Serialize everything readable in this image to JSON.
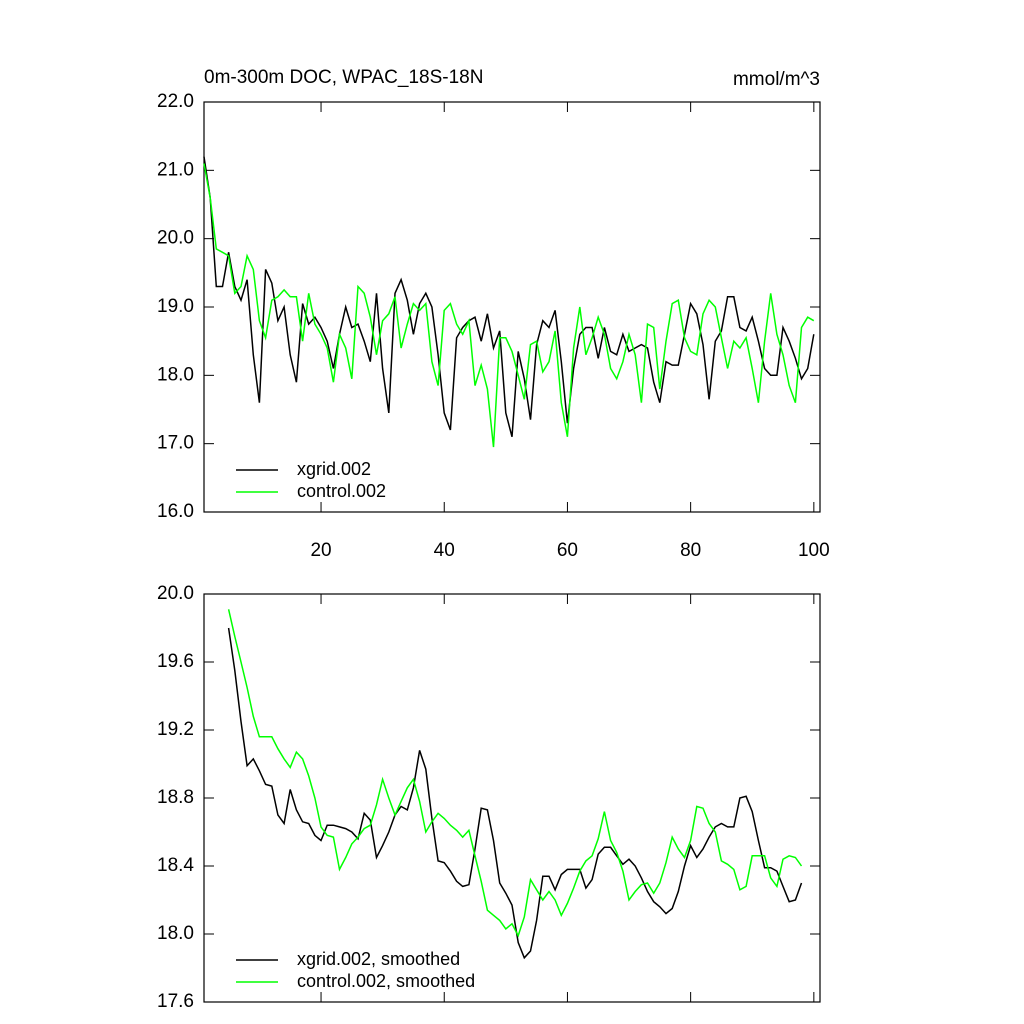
{
  "chart_data": [
    {
      "type": "line",
      "title": "0m-300m DOC, WPAC_18S-18N",
      "units_label": "mmol/m^3",
      "x": [
        1,
        2,
        3,
        4,
        5,
        6,
        7,
        8,
        9,
        10,
        11,
        12,
        13,
        14,
        15,
        16,
        17,
        18,
        19,
        20,
        21,
        22,
        23,
        24,
        25,
        26,
        27,
        28,
        29,
        30,
        31,
        32,
        33,
        34,
        35,
        36,
        37,
        38,
        39,
        40,
        41,
        42,
        43,
        44,
        45,
        46,
        47,
        48,
        49,
        50,
        51,
        52,
        53,
        54,
        55,
        56,
        57,
        58,
        59,
        60,
        61,
        62,
        63,
        64,
        65,
        66,
        67,
        68,
        69,
        70,
        71,
        72,
        73,
        74,
        75,
        76,
        77,
        78,
        79,
        80,
        81,
        82,
        83,
        84,
        85,
        86,
        87,
        88,
        89,
        90,
        91,
        92,
        93,
        94,
        95,
        96,
        97,
        98,
        99,
        100
      ],
      "series": [
        {
          "name": "xgrid.002",
          "color": "#000000",
          "values": [
            21.2,
            20.6,
            19.3,
            19.3,
            19.8,
            19.3,
            19.1,
            19.4,
            18.3,
            17.6,
            19.55,
            19.35,
            18.8,
            19.0,
            18.3,
            17.9,
            19.05,
            18.75,
            18.85,
            18.7,
            18.5,
            18.1,
            18.6,
            19.0,
            18.7,
            18.75,
            18.5,
            18.2,
            19.2,
            18.1,
            17.45,
            19.2,
            19.4,
            19.1,
            18.6,
            19.05,
            19.2,
            19.0,
            18.3,
            17.45,
            17.2,
            18.55,
            18.7,
            18.8,
            18.85,
            18.5,
            18.9,
            18.4,
            18.65,
            17.45,
            17.1,
            18.35,
            17.95,
            17.35,
            18.45,
            18.8,
            18.7,
            18.95,
            18.2,
            17.3,
            18.1,
            18.6,
            18.7,
            18.7,
            18.25,
            18.7,
            18.35,
            18.3,
            18.6,
            18.35,
            18.4,
            18.45,
            18.4,
            17.9,
            17.6,
            18.2,
            18.15,
            18.15,
            18.6,
            19.05,
            18.9,
            18.45,
            17.65,
            18.5,
            18.65,
            19.15,
            19.15,
            18.7,
            18.65,
            18.85,
            18.5,
            18.1,
            18.0,
            18.0,
            18.7,
            18.5,
            18.25,
            17.95,
            18.1,
            18.6
          ]
        },
        {
          "name": "control.002",
          "color": "#00ff00",
          "values": [
            21.1,
            20.6,
            19.85,
            19.8,
            19.75,
            19.2,
            19.3,
            19.75,
            19.55,
            18.8,
            18.55,
            19.1,
            19.15,
            19.25,
            19.15,
            19.15,
            18.5,
            19.2,
            18.75,
            18.6,
            18.4,
            17.9,
            18.6,
            18.4,
            17.95,
            19.3,
            19.2,
            18.85,
            18.3,
            18.8,
            18.9,
            19.15,
            18.4,
            18.75,
            19.05,
            18.95,
            19.05,
            18.2,
            17.85,
            18.95,
            19.05,
            18.75,
            18.6,
            18.8,
            17.85,
            18.15,
            17.8,
            16.95,
            18.55,
            18.55,
            18.35,
            18.0,
            17.65,
            18.45,
            18.5,
            18.05,
            18.2,
            18.65,
            17.6,
            17.1,
            18.4,
            19.0,
            18.3,
            18.55,
            18.85,
            18.6,
            18.1,
            17.95,
            18.2,
            18.6,
            18.3,
            17.6,
            18.75,
            18.7,
            17.8,
            18.5,
            19.05,
            19.1,
            18.55,
            18.35,
            18.3,
            18.9,
            19.1,
            19.0,
            18.55,
            18.1,
            18.5,
            18.4,
            18.55,
            18.1,
            17.6,
            18.5,
            19.2,
            18.6,
            18.3,
            17.85,
            17.6,
            18.7,
            18.85,
            18.8
          ]
        }
      ],
      "xlim": [
        1,
        101
      ],
      "xticks": [
        20,
        40,
        60,
        80,
        100
      ],
      "xtick_labels": true,
      "ylim": [
        16,
        22
      ],
      "yticks": [
        {
          "value": 16,
          "label": "16.0"
        },
        {
          "value": 17,
          "label": "17.0"
        },
        {
          "value": 18,
          "label": "18.0"
        },
        {
          "value": 19,
          "label": "19.0"
        },
        {
          "value": 20,
          "label": "20.0"
        },
        {
          "value": 21,
          "label": "21.0"
        },
        {
          "value": 22,
          "label": "22.0"
        }
      ],
      "legend": "lower left"
    },
    {
      "type": "line",
      "x": [
        5,
        6,
        7,
        8,
        9,
        10,
        11,
        12,
        13,
        14,
        15,
        16,
        17,
        18,
        19,
        20,
        21,
        22,
        23,
        24,
        25,
        26,
        27,
        28,
        29,
        30,
        31,
        32,
        33,
        34,
        35,
        36,
        37,
        38,
        39,
        40,
        41,
        42,
        43,
        44,
        45,
        46,
        47,
        48,
        49,
        50,
        51,
        52,
        53,
        54,
        55,
        56,
        57,
        58,
        59,
        60,
        61,
        62,
        63,
        64,
        65,
        66,
        67,
        68,
        69,
        70,
        71,
        72,
        73,
        74,
        75,
        76,
        77,
        78,
        79,
        80,
        81,
        82,
        83,
        84,
        85,
        86,
        87,
        88,
        89,
        90,
        91,
        92,
        93,
        94,
        95,
        96,
        97,
        98
      ],
      "series": [
        {
          "name": "xgrid.002, smoothed",
          "color": "#000000",
          "values": [
            19.8,
            19.55,
            19.25,
            18.99,
            19.03,
            18.96,
            18.88,
            18.87,
            18.7,
            18.65,
            18.85,
            18.73,
            18.66,
            18.65,
            18.58,
            18.55,
            18.64,
            18.64,
            18.63,
            18.62,
            18.6,
            18.56,
            18.71,
            18.67,
            18.45,
            18.52,
            18.6,
            18.7,
            18.75,
            18.73,
            18.86,
            19.08,
            18.97,
            18.68,
            18.43,
            18.42,
            18.37,
            18.31,
            18.28,
            18.29,
            18.5,
            18.74,
            18.73,
            18.55,
            18.3,
            18.24,
            18.17,
            17.95,
            17.86,
            17.9,
            18.08,
            18.34,
            18.34,
            18.26,
            18.35,
            18.38,
            18.38,
            18.38,
            18.27,
            18.32,
            18.47,
            18.51,
            18.51,
            18.46,
            18.41,
            18.44,
            18.4,
            18.33,
            18.25,
            18.19,
            18.16,
            18.12,
            18.15,
            18.25,
            18.4,
            18.52,
            18.45,
            18.5,
            18.57,
            18.63,
            18.65,
            18.63,
            18.63,
            18.8,
            18.81,
            18.72,
            18.55,
            18.39,
            18.39,
            18.37,
            18.28,
            18.19,
            18.2,
            18.3
          ]
        },
        {
          "name": "control.002, smoothed",
          "color": "#00ff00",
          "values": [
            19.91,
            19.75,
            19.6,
            19.45,
            19.28,
            19.16,
            19.16,
            19.16,
            19.09,
            19.03,
            18.98,
            19.07,
            19.03,
            18.93,
            18.8,
            18.63,
            18.58,
            18.57,
            18.38,
            18.45,
            18.53,
            18.57,
            18.62,
            18.64,
            18.76,
            18.91,
            18.8,
            18.7,
            18.78,
            18.86,
            18.91,
            18.78,
            18.6,
            18.66,
            18.71,
            18.68,
            18.64,
            18.61,
            18.57,
            18.61,
            18.46,
            18.31,
            18.14,
            18.11,
            18.08,
            18.03,
            18.06,
            17.99,
            18.1,
            18.32,
            18.26,
            18.2,
            18.25,
            18.2,
            18.11,
            18.18,
            18.27,
            18.37,
            18.43,
            18.46,
            18.56,
            18.72,
            18.55,
            18.48,
            18.37,
            18.2,
            18.25,
            18.29,
            18.3,
            18.24,
            18.3,
            18.42,
            18.57,
            18.5,
            18.45,
            18.55,
            18.75,
            18.74,
            18.65,
            18.6,
            18.43,
            18.41,
            18.38,
            18.26,
            18.28,
            18.46,
            18.46,
            18.46,
            18.33,
            18.28,
            18.44,
            18.46,
            18.45,
            18.4
          ]
        }
      ],
      "xlim": [
        1,
        101
      ],
      "xticks": [
        20,
        40,
        60,
        80,
        100
      ],
      "xtick_labels": false,
      "ylim": [
        17.6,
        20
      ],
      "yticks": [
        17.6,
        {
          "value": 18,
          "label": "18.0"
        },
        18.4,
        18.8,
        19.2,
        19.6,
        {
          "value": 20,
          "label": "20.0"
        }
      ],
      "legend": "lower left"
    }
  ]
}
